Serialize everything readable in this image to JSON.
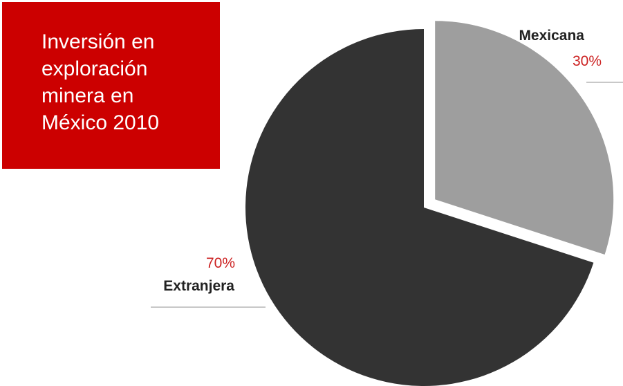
{
  "title": "Inversión en\nexploración\nminera en\nMéxico 2010",
  "chart_data": {
    "type": "pie",
    "title": "Inversión en exploración minera en México 2010",
    "slices": [
      {
        "name": "Mexicana",
        "value": 30,
        "label": "30%",
        "color": "#9e9e9e",
        "exploded": true
      },
      {
        "name": "Extranjera",
        "value": 70,
        "label": "70%",
        "color": "#333333",
        "exploded": false
      }
    ],
    "legend": "none",
    "label_color": "#cc2222",
    "leader_line_color": "#c8c8c8"
  }
}
